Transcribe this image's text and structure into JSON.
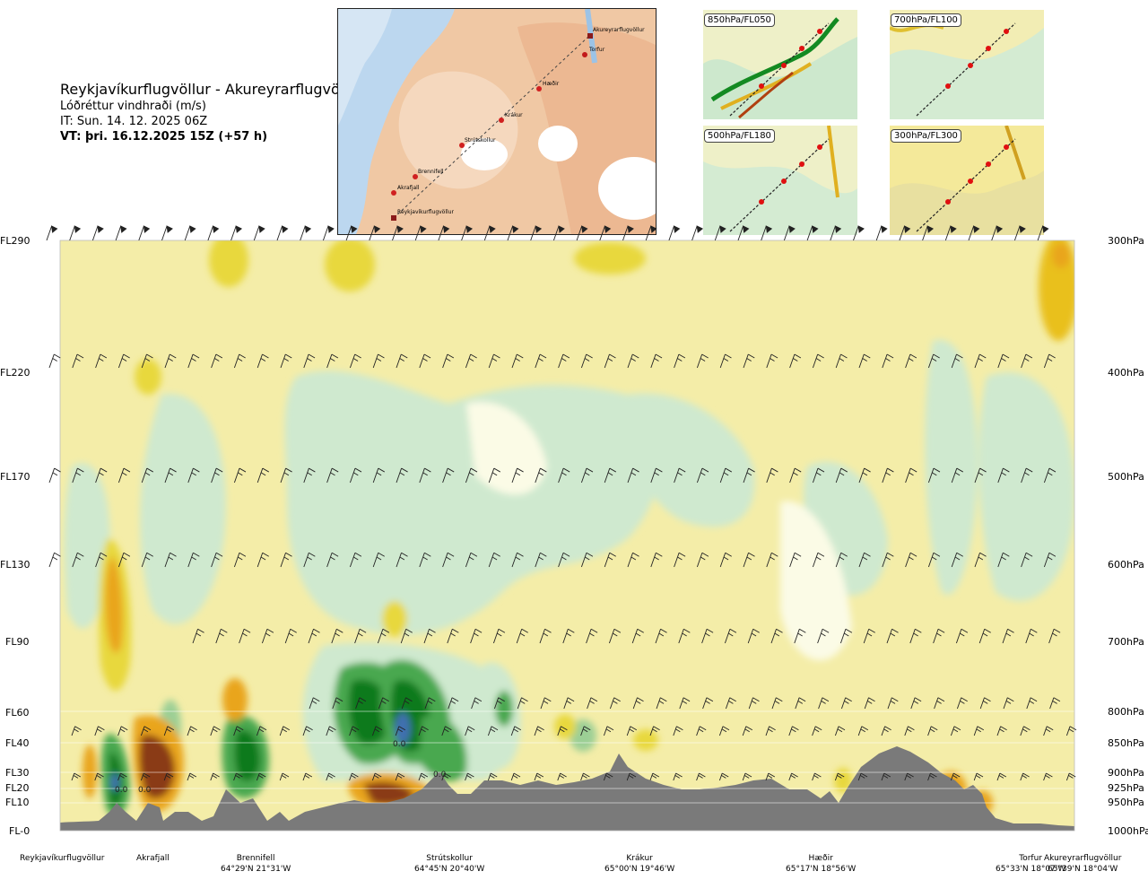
{
  "header": {
    "title": "Reykjavíkurflugvöllur - Akureyrarflugvöllur",
    "subtitle": "Lóðréttur vindhraði (m/s)",
    "issue_time": "IT: Sun. 14. 12. 2025 06Z",
    "valid_time": "VT: þri. 16.12.2025 15Z (+57 h)"
  },
  "route_map": {
    "stations": [
      "Akureyrarflugvöllur",
      "Torfur",
      "Hæðir",
      "Krákur",
      "Strútskollur",
      "Brennifell",
      "Akrafjall",
      "Reykjavíkurflugvöllur"
    ]
  },
  "mini_maps": [
    {
      "label": "850hPa/FL050"
    },
    {
      "label": "700hPa/FL100"
    },
    {
      "label": "500hPa/FL180"
    },
    {
      "label": "300hPa/FL300"
    }
  ],
  "colors": {
    "terrain": "#7a7a7a",
    "up_strong": "#0a7a1c",
    "up_medium": "#4aa84f",
    "up_weak": "#cfe9cf",
    "neutral": "#f4eda8",
    "down_weak": "#e8d83e",
    "down_medium": "#e9a51a",
    "down_strong": "#8a3b12",
    "core_blue": "#3f6fb0"
  },
  "chart_data": {
    "type": "heatmap",
    "variable": "Lóðréttur vindhraði (m/s)",
    "left_axis_flight_levels": [
      "FL290",
      "FL220",
      "FL170",
      "FL130",
      "FL90",
      "FL60",
      "FL40",
      "FL30",
      "FL20",
      "FL10",
      "FL-0"
    ],
    "right_axis_pressure": [
      "300hPa",
      "400hPa",
      "500hPa",
      "600hPa",
      "700hPa",
      "800hPa",
      "850hPa",
      "900hPa",
      "925hPa",
      "950hPa",
      "1000hPa"
    ],
    "stations": [
      {
        "name": "Reykjavíkurflugvöllur",
        "coord": ""
      },
      {
        "name": "Akrafjall",
        "coord": ""
      },
      {
        "name": "Brennifell",
        "coord": "64°29'N 21°31'W"
      },
      {
        "name": "Strútskollur",
        "coord": "64°45'N 20°40'W"
      },
      {
        "name": "Krákur",
        "coord": "65°00'N 19°46'W"
      },
      {
        "name": "Hæðir",
        "coord": "65°17'N 18°56'W"
      },
      {
        "name": "Torfur",
        "coord": "65°33'N 18°07'W"
      },
      {
        "name": "Akureyrarflugvöllur",
        "coord": "65°39'N 18°04'W"
      }
    ],
    "annotations": [
      "0.0",
      "0.0",
      "0.0",
      "0.0"
    ]
  }
}
